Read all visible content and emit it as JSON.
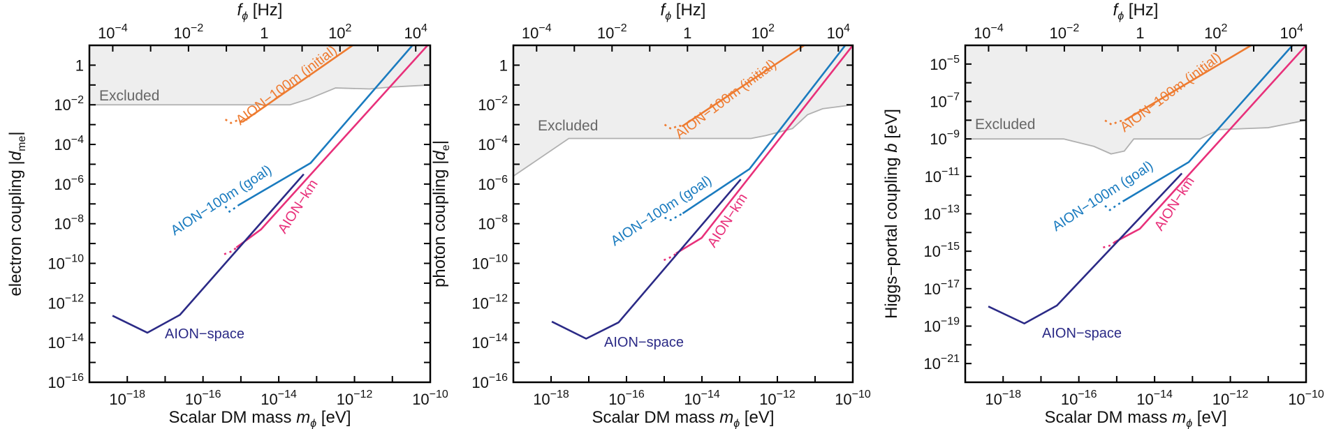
{
  "chart_data": [
    {
      "type": "line",
      "panel": "electron",
      "xlabel": "Scalar DM mass m_φ [eV]",
      "xlabel_parts": {
        "pre": "Scalar DM mass ",
        "var": "m",
        "sub": "ϕ",
        "post": " [eV]"
      },
      "ylabel_parts": {
        "pre": "electron coupling |",
        "var": "d",
        "sub": "me",
        "post": "|"
      },
      "top_xlabel_parts": {
        "var": "f",
        "sub": "ϕ",
        "post": " [Hz]"
      },
      "x_scale": "log",
      "y_scale": "log",
      "xlim_log10": [
        -19,
        -10
      ],
      "ylim_log10": [
        -16,
        1
      ],
      "x_ticks_log10": [
        -18,
        -16,
        -14,
        -12,
        -10
      ],
      "y_ticks_log10": [
        0,
        -2,
        -4,
        -6,
        -8,
        -10,
        -12,
        -14,
        -16
      ],
      "top_ticks": [
        {
          "label_base": "10",
          "exp": "−4",
          "log10_hz": -4
        },
        {
          "label_base": "10",
          "exp": "−2",
          "log10_hz": -2
        },
        {
          "label_base": "1",
          "exp": "",
          "log10_hz": 0
        },
        {
          "label_base": "10",
          "exp": "2",
          "log10_hz": 2
        },
        {
          "label_base": "10",
          "exp": "4",
          "log10_hz": 4
        }
      ],
      "excluded": {
        "label": "Excluded",
        "boundary_log10": [
          [
            -19,
            -2
          ],
          [
            -13.7,
            -2
          ],
          [
            -13.2,
            -1.7
          ],
          [
            -12.5,
            -1.15
          ],
          [
            -11.6,
            -1.2
          ],
          [
            -11,
            -1.1
          ],
          [
            -10,
            -1.0
          ]
        ]
      },
      "series": [
        {
          "name": "AION−100m (initial)",
          "color": "#ee7b30",
          "solid_log10": [
            [
              -14.96,
              -2.87
            ],
            [
              -12.05,
              1.0
            ]
          ],
          "dotted_log10": [
            [
              -15.41,
              -2.74
            ],
            [
              -15.26,
              -2.92
            ],
            [
              -15.1,
              -2.79
            ]
          ]
        },
        {
          "name": "AION−100m (goal)",
          "color": "#1a7bbf",
          "solid_log10": [
            [
              -15.05,
              -7.05
            ],
            [
              -13.16,
              -4.94
            ],
            [
              -10.47,
              1.0
            ]
          ],
          "dotted_log10": [
            [
              -15.41,
              -7.13
            ],
            [
              -15.3,
              -7.39
            ],
            [
              -15.17,
              -7.22
            ]
          ]
        },
        {
          "name": "AION−km",
          "color": "#e8307a",
          "solid_log10": [
            [
              -15.12,
              -9.2
            ],
            [
              -14.47,
              -8.29
            ],
            [
              -10.07,
              1.0
            ]
          ],
          "dotted_log10": [
            [
              -15.44,
              -9.54
            ],
            [
              -15.21,
              -9.37
            ]
          ]
        },
        {
          "name": "AION−space",
          "color": "#2b2a86",
          "solid_log10": [
            [
              -18.39,
              -12.64
            ],
            [
              -17.47,
              -13.5
            ],
            [
              -16.61,
              -12.6
            ],
            [
              -13.34,
              -5.5
            ]
          ],
          "dotted_log10": []
        }
      ]
    },
    {
      "type": "line",
      "panel": "photon",
      "xlabel": "Scalar DM mass m_φ [eV]",
      "xlabel_parts": {
        "pre": "Scalar DM mass ",
        "var": "m",
        "sub": "ϕ",
        "post": " [eV]"
      },
      "ylabel_parts": {
        "pre": "photon coupling |",
        "var": "d",
        "sub": "e",
        "post": "|"
      },
      "top_xlabel_parts": {
        "var": "f",
        "sub": "ϕ",
        "post": " [Hz]"
      },
      "x_scale": "log",
      "y_scale": "log",
      "xlim_log10": [
        -19,
        -10
      ],
      "ylim_log10": [
        -16,
        1
      ],
      "x_ticks_log10": [
        -18,
        -16,
        -14,
        -12,
        -10
      ],
      "y_ticks_log10": [
        0,
        -2,
        -4,
        -6,
        -8,
        -10,
        -12,
        -14,
        -16
      ],
      "top_ticks": [
        {
          "label_base": "10",
          "exp": "−4",
          "log10_hz": -4
        },
        {
          "label_base": "10",
          "exp": "−2",
          "log10_hz": -2
        },
        {
          "label_base": "1",
          "exp": "",
          "log10_hz": 0
        },
        {
          "label_base": "10",
          "exp": "2",
          "log10_hz": 2
        },
        {
          "label_base": "10",
          "exp": "4",
          "log10_hz": 4
        }
      ],
      "excluded": {
        "label": "Excluded",
        "boundary_log10": [
          [
            -19,
            -5.6
          ],
          [
            -17.53,
            -3.7
          ],
          [
            -12.7,
            -3.7
          ],
          [
            -12.3,
            -3.55
          ],
          [
            -11.6,
            -3.2
          ],
          [
            -11.2,
            -2.5
          ],
          [
            -10.8,
            -2.2
          ],
          [
            -10,
            -2.0
          ]
        ]
      },
      "series": [
        {
          "name": "AION−100m (initial)",
          "color": "#ee7b30",
          "solid_log10": [
            [
              -14.53,
              -3.09
            ],
            [
              -11.29,
              1.0
            ]
          ],
          "dotted_log10": [
            [
              -14.99,
              -3.0
            ],
            [
              -14.81,
              -3.22
            ],
            [
              -14.62,
              -3.04
            ]
          ]
        },
        {
          "name": "AION−100m (goal)",
          "color": "#1a7bbf",
          "solid_log10": [
            [
              -14.51,
              -7.48
            ],
            [
              -12.74,
              -5.24
            ],
            [
              -10.2,
              1.0
            ]
          ],
          "dotted_log10": [
            [
              -14.99,
              -7.69
            ],
            [
              -14.83,
              -7.82
            ],
            [
              -14.67,
              -7.65
            ]
          ]
        },
        {
          "name": "AION−km",
          "color": "#e8307a",
          "solid_log10": [
            [
              -14.69,
              -9.5
            ],
            [
              -14.01,
              -8.72
            ],
            [
              -10,
              1.0
            ]
          ],
          "dotted_log10": [
            [
              -15.01,
              -9.84
            ],
            [
              -14.76,
              -9.63
            ]
          ]
        },
        {
          "name": "AION−space",
          "color": "#2b2a86",
          "solid_log10": [
            [
              -17.98,
              -12.94
            ],
            [
              -17.07,
              -13.8
            ],
            [
              -16.21,
              -12.98
            ],
            [
              -12.97,
              -5.76
            ]
          ],
          "dotted_log10": []
        }
      ]
    },
    {
      "type": "line",
      "panel": "higgs",
      "xlabel": "Scalar DM mass m_φ [eV]",
      "xlabel_parts": {
        "pre": "Scalar DM mass ",
        "var": "m",
        "sub": "ϕ",
        "post": " [eV]"
      },
      "ylabel_parts": {
        "pre": "Higgs−portal coupling ",
        "var": "b",
        "sub": "",
        "post": " [eV]"
      },
      "top_xlabel_parts": {
        "var": "f",
        "sub": "ϕ",
        "post": " [Hz]"
      },
      "x_scale": "log",
      "y_scale": "log",
      "xlim_log10": [
        -19,
        -10
      ],
      "ylim_log10": [
        -22,
        -4
      ],
      "x_ticks_log10": [
        -18,
        -16,
        -14,
        -12,
        -10
      ],
      "y_ticks_log10": [
        -5,
        -7,
        -9,
        -11,
        -13,
        -15,
        -17,
        -19,
        -21
      ],
      "top_ticks": [
        {
          "label_base": "10",
          "exp": "−4",
          "log10_hz": -4
        },
        {
          "label_base": "10",
          "exp": "−2",
          "log10_hz": -2
        },
        {
          "label_base": "1",
          "exp": "",
          "log10_hz": 0
        },
        {
          "label_base": "10",
          "exp": "2",
          "log10_hz": 2
        },
        {
          "label_base": "10",
          "exp": "4",
          "log10_hz": 4
        }
      ],
      "excluded": {
        "label": "Excluded",
        "boundary_log10": [
          [
            -19,
            -9
          ],
          [
            -16.4,
            -9
          ],
          [
            -15.6,
            -9.4
          ],
          [
            -15.15,
            -9.8
          ],
          [
            -14.8,
            -9.65
          ],
          [
            -14.55,
            -9.0
          ],
          [
            -12.8,
            -9.0
          ],
          [
            -12.3,
            -8.5
          ],
          [
            -11.0,
            -8.4
          ],
          [
            -10,
            -8.0
          ]
        ]
      },
      "series": [
        {
          "name": "AION−100m (initial)",
          "color": "#ee7b30",
          "solid_log10": [
            [
              -14.79,
              -8.01
            ],
            [
              -11.45,
              -4.0
            ]
          ],
          "dotted_log10": [
            [
              -15.31,
              -8.01
            ],
            [
              -15.13,
              -8.24
            ],
            [
              -14.95,
              -8.06
            ]
          ]
        },
        {
          "name": "AION−100m (goal)",
          "color": "#1a7bbf",
          "solid_log10": [
            [
              -14.84,
              -12.34
            ],
            [
              -13.1,
              -10.24
            ],
            [
              -10.36,
              -4.0
            ]
          ],
          "dotted_log10": [
            [
              -15.31,
              -12.57
            ],
            [
              -15.18,
              -12.8
            ],
            [
              -15.02,
              -12.57
            ]
          ]
        },
        {
          "name": "AION−km",
          "color": "#e8307a",
          "solid_log10": [
            [
              -15.07,
              -14.53
            ],
            [
              -14.39,
              -13.8
            ],
            [
              -10,
              -4.0
            ]
          ],
          "dotted_log10": [
            [
              -15.36,
              -14.8
            ],
            [
              -15.13,
              -14.67
            ]
          ]
        },
        {
          "name": "AION−space",
          "color": "#2b2a86",
          "solid_log10": [
            [
              -18.39,
              -17.95
            ],
            [
              -17.44,
              -18.86
            ],
            [
              -16.58,
              -17.9
            ],
            [
              -13.28,
              -10.84
            ]
          ],
          "dotted_log10": []
        }
      ]
    }
  ]
}
